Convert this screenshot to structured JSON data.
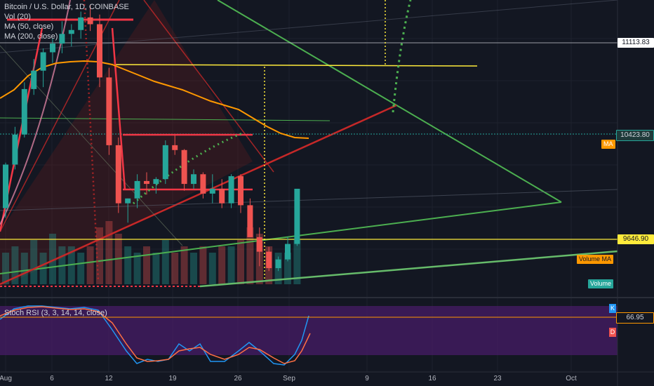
{
  "header": {
    "title": "Bitcoin / U.S. Dollar, 1D, COINBASE",
    "indicators": [
      "Vol (20)",
      "MA (50, close)",
      "MA (200, close)"
    ]
  },
  "price_scale": {
    "labels": [
      {
        "value": "11113.83",
        "style": "white"
      },
      {
        "value": "10423.80",
        "style": "teal"
      },
      {
        "value": "9646.90",
        "style": "yellow"
      }
    ],
    "ma_badge": "MA",
    "volume_ma_badge": "Volume MA",
    "volume_badge": "Volume"
  },
  "stoch_rsi": {
    "title": "Stoch RSI (3, 3, 14, 14, close)",
    "level_label": "66.95",
    "k_label": "K",
    "d_label": "D"
  },
  "time_axis": {
    "labels": [
      "Aug",
      "6",
      "12",
      "19",
      "26",
      "Sep",
      "9",
      "16",
      "23",
      "Oct"
    ]
  },
  "colors": {
    "background": "#131722",
    "up": "#26a69a",
    "down": "#ef5350",
    "ma": "#ff9800",
    "yellow": "#ffeb3b",
    "green_line": "#4caf50",
    "red_line": "#f23645",
    "stoch_band": "#4a1d6b"
  },
  "chart_data": {
    "type": "candlestick",
    "series": [
      {
        "name": "Bitcoin / U.S. Dollar",
        "values": [
          [
            10150,
            10620,
            10050,
            10600
          ],
          [
            10600,
            10990,
            10550,
            10910
          ],
          [
            10910,
            11450,
            10880,
            11380
          ],
          [
            11380,
            11690,
            11320,
            11570
          ],
          [
            11570,
            11800,
            11400,
            11760
          ],
          [
            11760,
            11900,
            11650,
            11850
          ],
          [
            11850,
            12080,
            11750,
            11950
          ],
          [
            11950,
            12050,
            11820,
            11990
          ],
          [
            11990,
            12180,
            11900,
            12120
          ],
          [
            12120,
            12250,
            11980,
            12050
          ],
          [
            12050,
            12150,
            11400,
            11500
          ],
          [
            11500,
            11600,
            10700,
            10800
          ],
          [
            10800,
            10880,
            10100,
            10200
          ],
          [
            10200,
            10250,
            10000,
            10250
          ],
          [
            10250,
            10500,
            10150,
            10430
          ],
          [
            10430,
            10520,
            10290,
            10400
          ],
          [
            10400,
            10470,
            10300,
            10450
          ],
          [
            10450,
            10850,
            10400,
            10800
          ],
          [
            10800,
            10900,
            10700,
            10750
          ],
          [
            10750,
            10760,
            10330,
            10400
          ],
          [
            10400,
            10550,
            10350,
            10500
          ],
          [
            10500,
            10520,
            10250,
            10300
          ],
          [
            10300,
            10500,
            10200,
            10350
          ],
          [
            10350,
            10450,
            10150,
            10200
          ],
          [
            10200,
            10500,
            10150,
            10480
          ],
          [
            10480,
            10500,
            10100,
            10180
          ],
          [
            10180,
            10250,
            9850,
            9850
          ],
          [
            9850,
            9950,
            9550,
            9700
          ],
          [
            9700,
            9750,
            9500,
            9530
          ],
          [
            9530,
            9650,
            9500,
            9620
          ],
          [
            9620,
            9850,
            9600,
            9780
          ],
          [
            9780,
            10350,
            9760,
            10350
          ]
        ]
      }
    ],
    "volume": [
      5,
      6,
      5,
      7,
      5,
      8,
      6,
      6,
      5,
      6,
      9,
      10,
      8,
      6,
      5,
      6,
      5,
      7,
      5,
      6,
      5,
      6,
      5,
      6,
      6,
      7,
      9,
      8,
      6,
      5,
      5,
      7
    ],
    "price_levels": [
      11113.83,
      10423.8,
      9646.9
    ],
    "stoch_level": 66.95
  }
}
